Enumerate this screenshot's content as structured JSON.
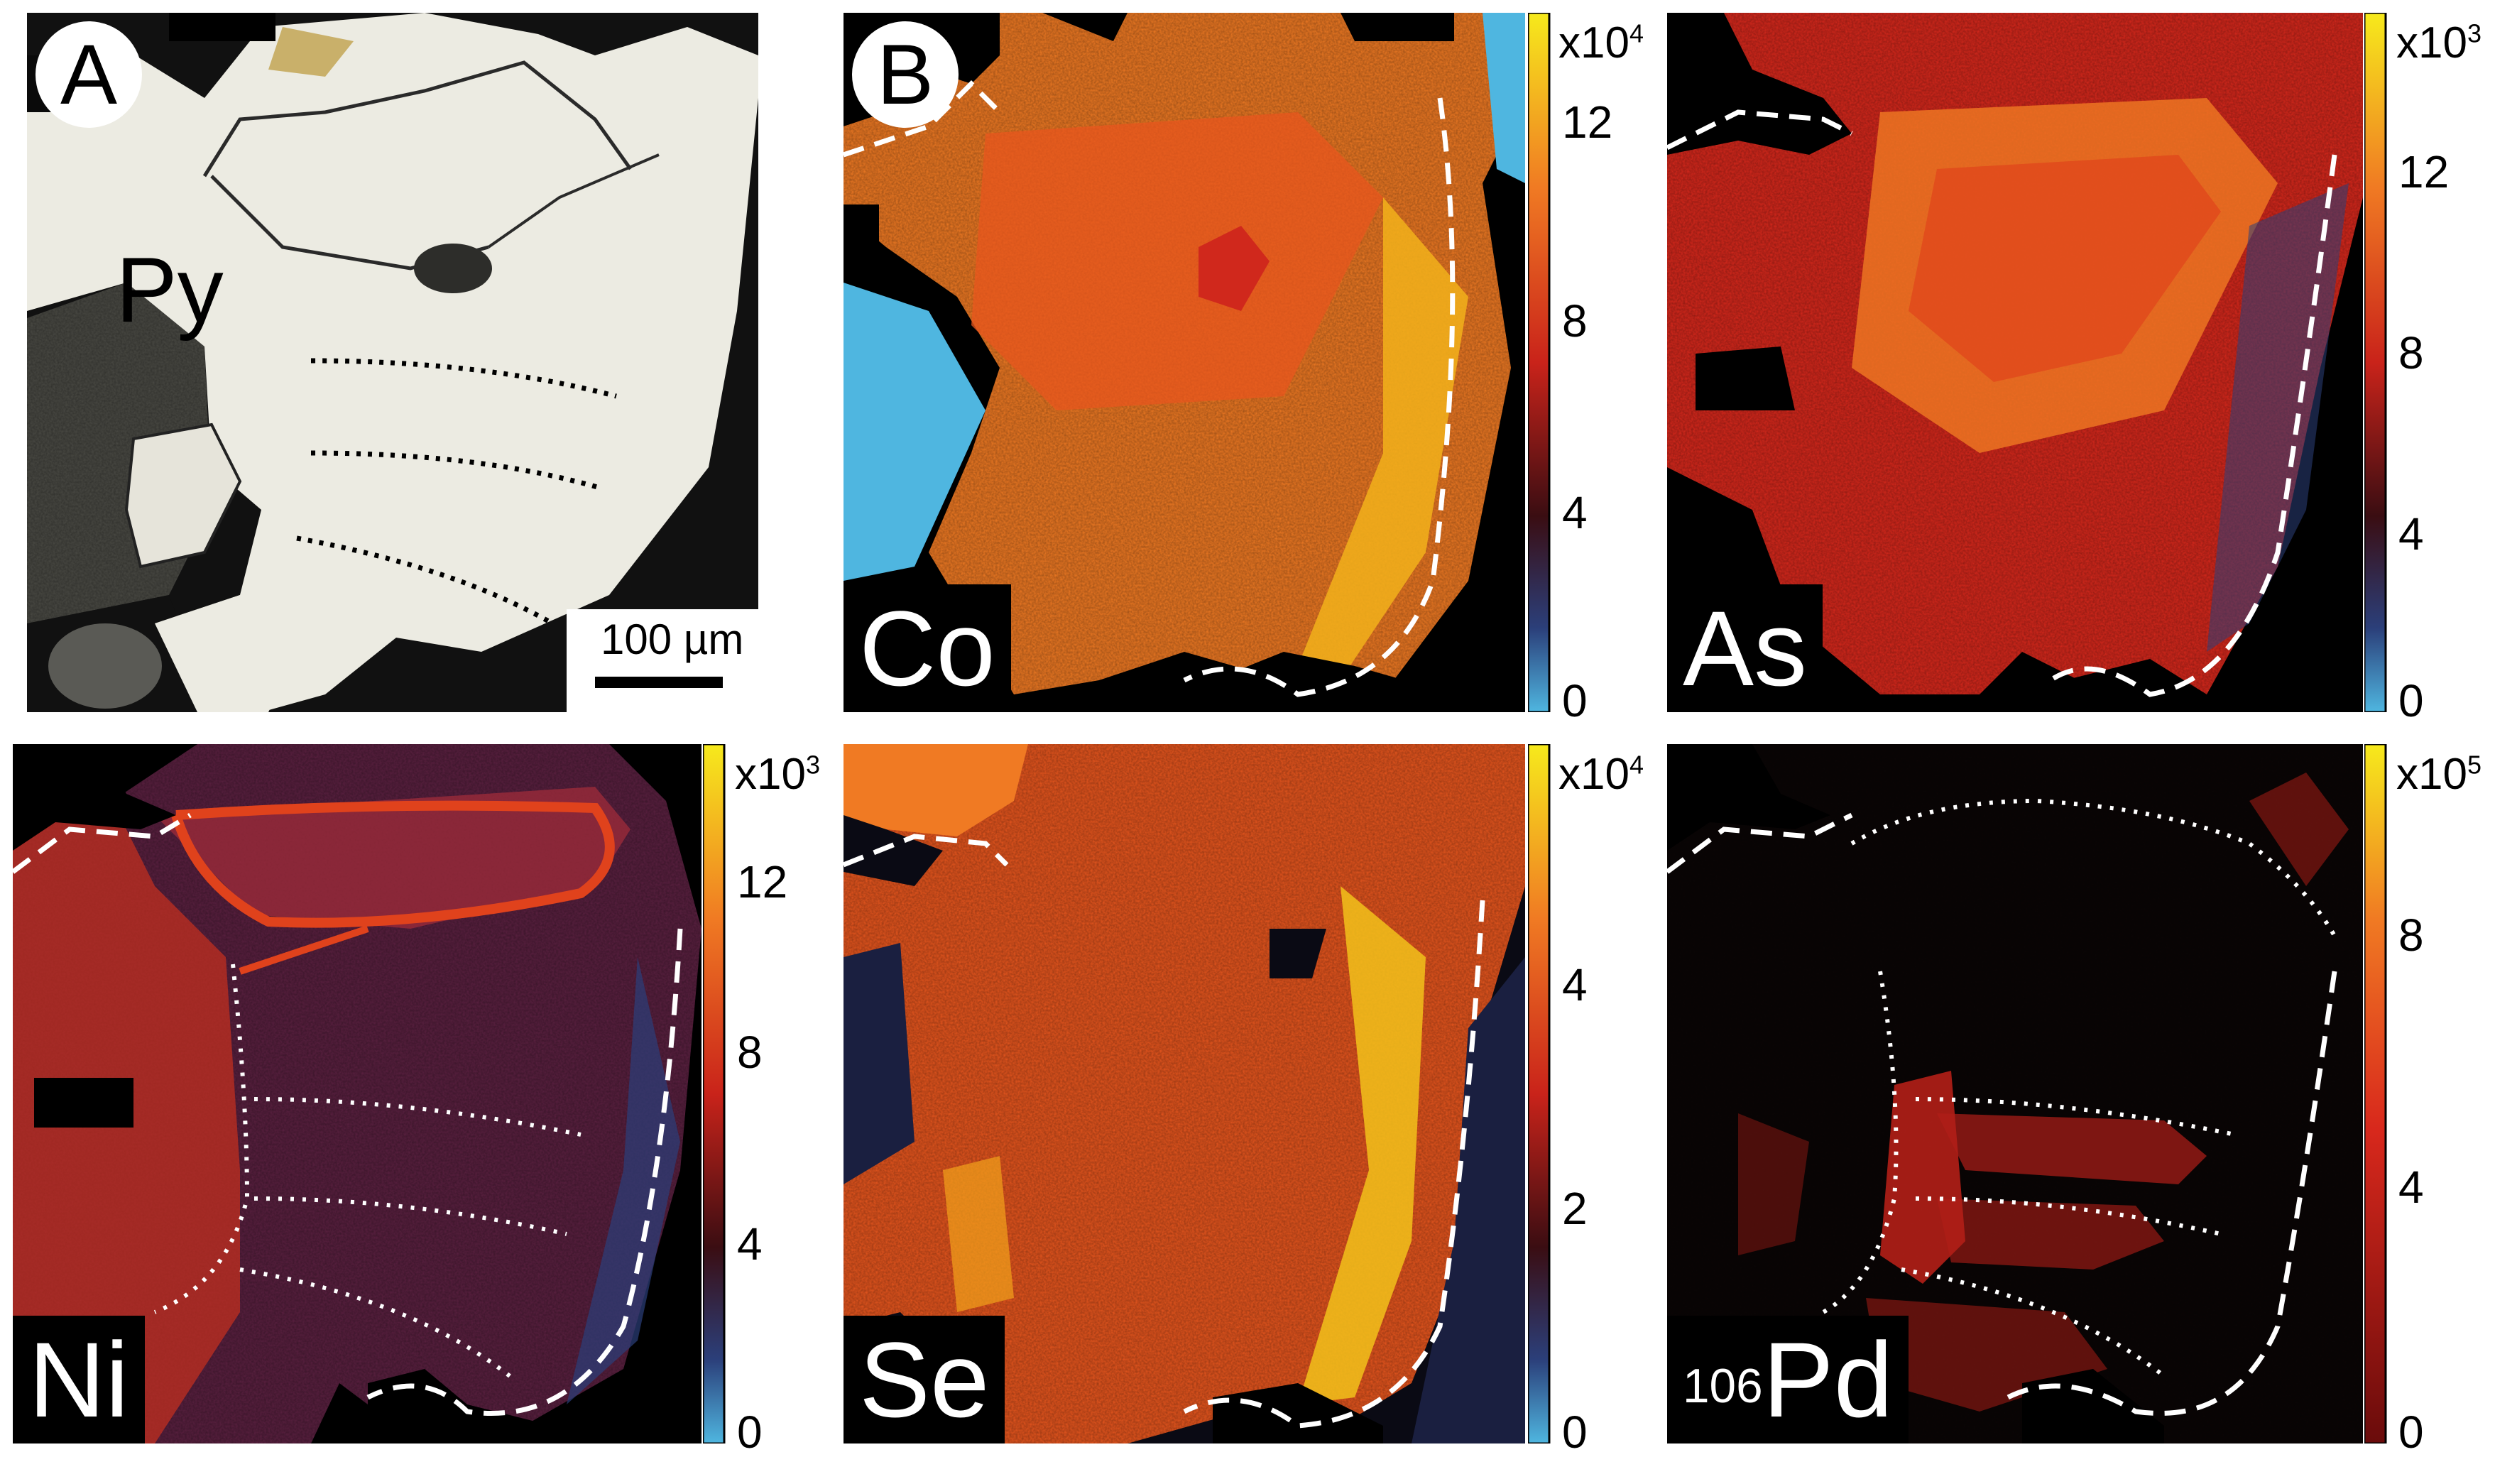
{
  "panel_a": {
    "badge": "A",
    "mineral_label": "Py",
    "scale_bar_label": "100 µm"
  },
  "panel_b_badge": "B",
  "maps": [
    {
      "element": "Co",
      "isotope": "",
      "multiplier_base": "x10",
      "multiplier_exp": "4",
      "ticks": [
        "12",
        "8",
        "4",
        "0"
      ]
    },
    {
      "element": "As",
      "isotope": "",
      "multiplier_base": "x10",
      "multiplier_exp": "3",
      "ticks": [
        "12",
        "8",
        "4",
        "0"
      ]
    },
    {
      "element": "Ni",
      "isotope": "",
      "multiplier_base": "x10",
      "multiplier_exp": "3",
      "ticks": [
        "12",
        "8",
        "4",
        "0"
      ]
    },
    {
      "element": "Se",
      "isotope": "",
      "multiplier_base": "x10",
      "multiplier_exp": "4",
      "ticks": [
        "4",
        "2",
        "0"
      ]
    },
    {
      "element": "Pd",
      "isotope": "106",
      "multiplier_base": "x10",
      "multiplier_exp": "5",
      "ticks": [
        "8",
        "4",
        "0"
      ]
    }
  ],
  "colors": {
    "map_orange": "#f07a23",
    "map_red": "#d8281c",
    "map_yellow": "#f2d21b",
    "map_blue": "#4fb6e0",
    "background": "#000000",
    "reflected_light": "#ecebe2"
  }
}
